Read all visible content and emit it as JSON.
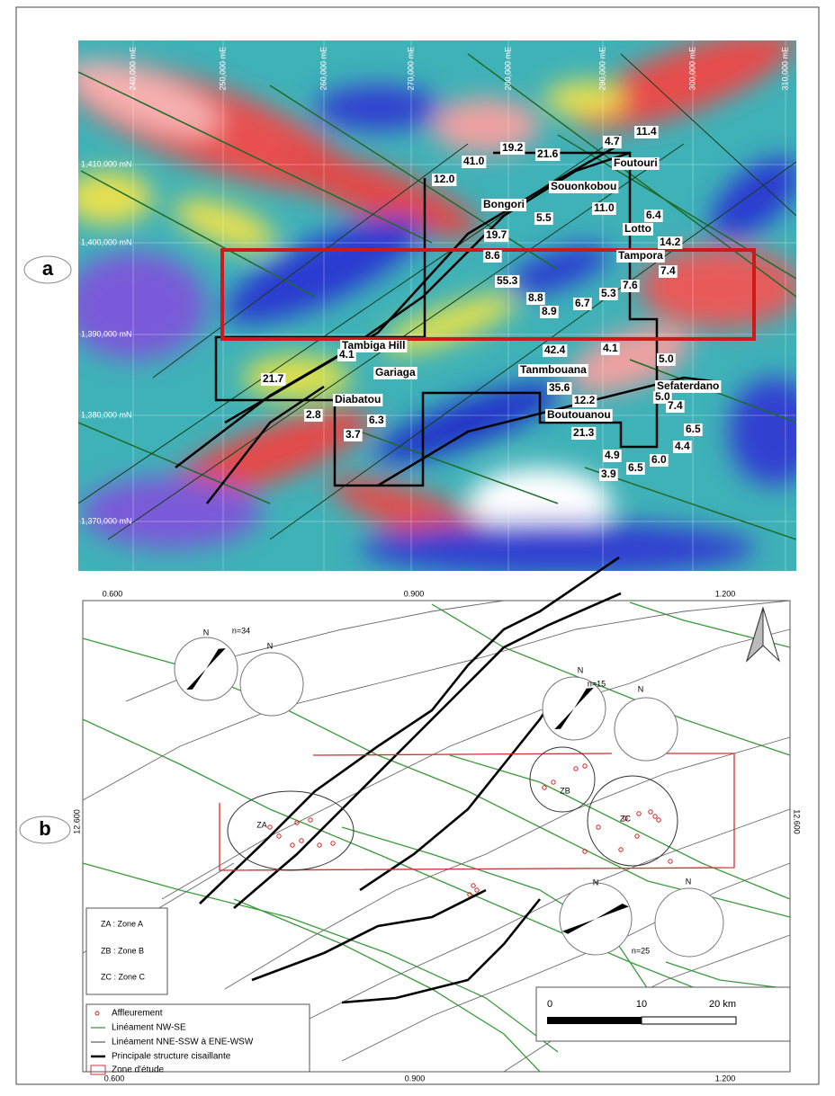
{
  "figure": {
    "panel_a": {
      "label": "a",
      "easting": [
        "240,000 mE",
        "250,000 mE",
        "260,000 mE",
        "270,000 mE",
        "280,000 mE",
        "290,000 mE",
        "300,000 mE",
        "310,000 mE"
      ],
      "northing": [
        "1,410,000 mN",
        "1,400,000 mN",
        "1,390,000 mN",
        "1,380,000 mN",
        "1,370,000 mN"
      ],
      "localities": [
        "Foutouri",
        "Souonkobou",
        "Bongori",
        "Lotto",
        "Tampora",
        "Tambiga Hill",
        "Gariaga",
        "Diabatou",
        "Tanmbouana",
        "Sefaterdano",
        "Boutouanou"
      ],
      "values": [
        "11.4",
        "4.7",
        "21.6",
        "19.2",
        "41.0",
        "12.0",
        "11.0",
        "6.4",
        "5.5",
        "19.7",
        "14.2",
        "8.6",
        "7.4",
        "55.3",
        "7.6",
        "5.3",
        "8.8",
        "6.7",
        "8.9",
        "42.4",
        "4.1",
        "4.1",
        "5.0",
        "21.7",
        "35.6",
        "12.2",
        "5.0",
        "7.4",
        "2.8",
        "6.3",
        "21.3",
        "6.5",
        "3.7",
        "4.4",
        "4.9",
        "6.0",
        "6.5",
        "3.9"
      ]
    },
    "panel_b": {
      "label": "b",
      "top_ticks": [
        "0.600",
        "0.900",
        "1.200"
      ],
      "bottom_ticks": [
        "0.600",
        "0.900",
        "1.200"
      ],
      "left_tick": "12.600",
      "right_tick": "12.600",
      "north_labels": [
        "N",
        "N",
        "N",
        "N",
        "N",
        "N"
      ],
      "counts": [
        "n=34",
        "n=15",
        "n=25"
      ],
      "zones": [
        "ZA",
        "ZB",
        "ZC"
      ],
      "zone_key": [
        "ZA : Zone A",
        "ZB : Zone B",
        "ZC : Zone C"
      ],
      "legend": [
        "Affleurement",
        "Linéament NW-SE",
        "Linéament NNE-SSW à ENE-WSW",
        "Principale structure cisaillante",
        "Zone d'étude"
      ],
      "scale_labels": [
        "0",
        "10",
        "20 km"
      ]
    }
  }
}
